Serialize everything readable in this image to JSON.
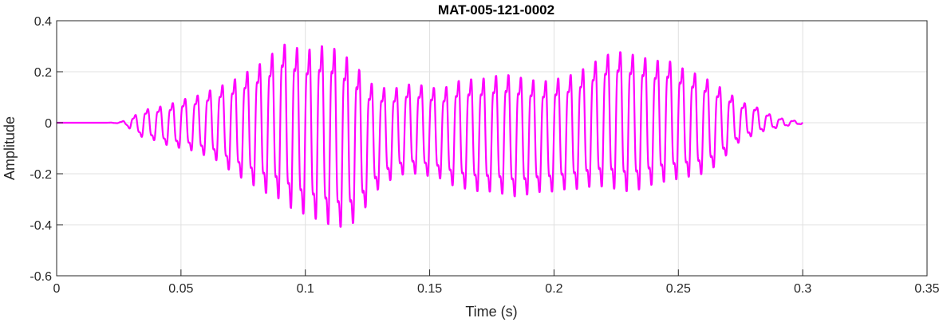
{
  "chart_data": {
    "type": "line",
    "title": "MAT-005-121-0002",
    "xlabel": "Time (s)",
    "ylabel": "Amplitude",
    "xlim": [
      0,
      0.35
    ],
    "ylim": [
      -0.6,
      0.4
    ],
    "grid": true,
    "x_ticks": [
      0,
      0.05,
      0.1,
      0.15,
      0.2,
      0.25,
      0.3,
      0.35
    ],
    "x_tick_labels": [
      "0",
      "0.05",
      "0.1",
      "0.15",
      "0.2",
      "0.25",
      "0.3",
      "0.35"
    ],
    "y_ticks": [
      -0.6,
      -0.4,
      -0.2,
      0,
      0.2,
      0.4
    ],
    "y_tick_labels": [
      "-0.6",
      "-0.4",
      "-0.2",
      "0",
      "0.2",
      "0.4"
    ],
    "line_color": "#ff00ff",
    "series": [
      {
        "x": [
          0,
          0.005,
          0.01,
          0.015,
          0.02,
          0.025,
          0.028,
          0.03,
          0.035,
          0.04,
          0.045,
          0.05,
          0.055,
          0.06,
          0.065,
          0.07,
          0.075,
          0.08,
          0.085,
          0.09,
          0.095,
          0.1,
          0.105,
          0.11,
          0.115,
          0.12,
          0.125,
          0.13,
          0.135,
          0.14,
          0.145,
          0.15,
          0.155,
          0.16,
          0.165,
          0.17,
          0.175,
          0.18,
          0.185,
          0.19,
          0.195,
          0.2,
          0.205,
          0.21,
          0.215,
          0.22,
          0.225,
          0.23,
          0.235,
          0.24,
          0.245,
          0.25,
          0.255,
          0.26,
          0.265,
          0.27,
          0.275,
          0.28,
          0.285,
          0.29,
          0.295,
          0.3
        ],
        "upper": [
          0,
          0,
          0,
          0,
          0,
          0.002,
          0.01,
          0.02,
          0.05,
          0.06,
          0.07,
          0.09,
          0.1,
          0.12,
          0.14,
          0.16,
          0.19,
          0.22,
          0.25,
          0.31,
          0.3,
          0.28,
          0.3,
          0.3,
          0.27,
          0.23,
          0.16,
          0.14,
          0.13,
          0.15,
          0.15,
          0.14,
          0.13,
          0.16,
          0.17,
          0.17,
          0.18,
          0.19,
          0.18,
          0.17,
          0.16,
          0.17,
          0.18,
          0.2,
          0.23,
          0.26,
          0.28,
          0.27,
          0.26,
          0.24,
          0.25,
          0.22,
          0.2,
          0.18,
          0.15,
          0.12,
          0.08,
          0.07,
          0.04,
          0.02,
          0.01,
          0.005
        ],
        "lower": [
          0,
          0,
          0,
          0,
          0,
          -0.002,
          -0.01,
          -0.03,
          -0.06,
          -0.07,
          -0.09,
          -0.1,
          -0.11,
          -0.13,
          -0.15,
          -0.19,
          -0.22,
          -0.25,
          -0.28,
          -0.3,
          -0.34,
          -0.36,
          -0.38,
          -0.4,
          -0.41,
          -0.39,
          -0.32,
          -0.25,
          -0.22,
          -0.2,
          -0.2,
          -0.21,
          -0.22,
          -0.25,
          -0.26,
          -0.27,
          -0.27,
          -0.28,
          -0.29,
          -0.28,
          -0.27,
          -0.27,
          -0.26,
          -0.26,
          -0.25,
          -0.25,
          -0.26,
          -0.27,
          -0.26,
          -0.24,
          -0.23,
          -0.22,
          -0.21,
          -0.2,
          -0.17,
          -0.12,
          -0.07,
          -0.05,
          -0.03,
          -0.02,
          -0.01,
          -0.005
        ],
        "cycle_period_s": 0.005
      }
    ]
  }
}
